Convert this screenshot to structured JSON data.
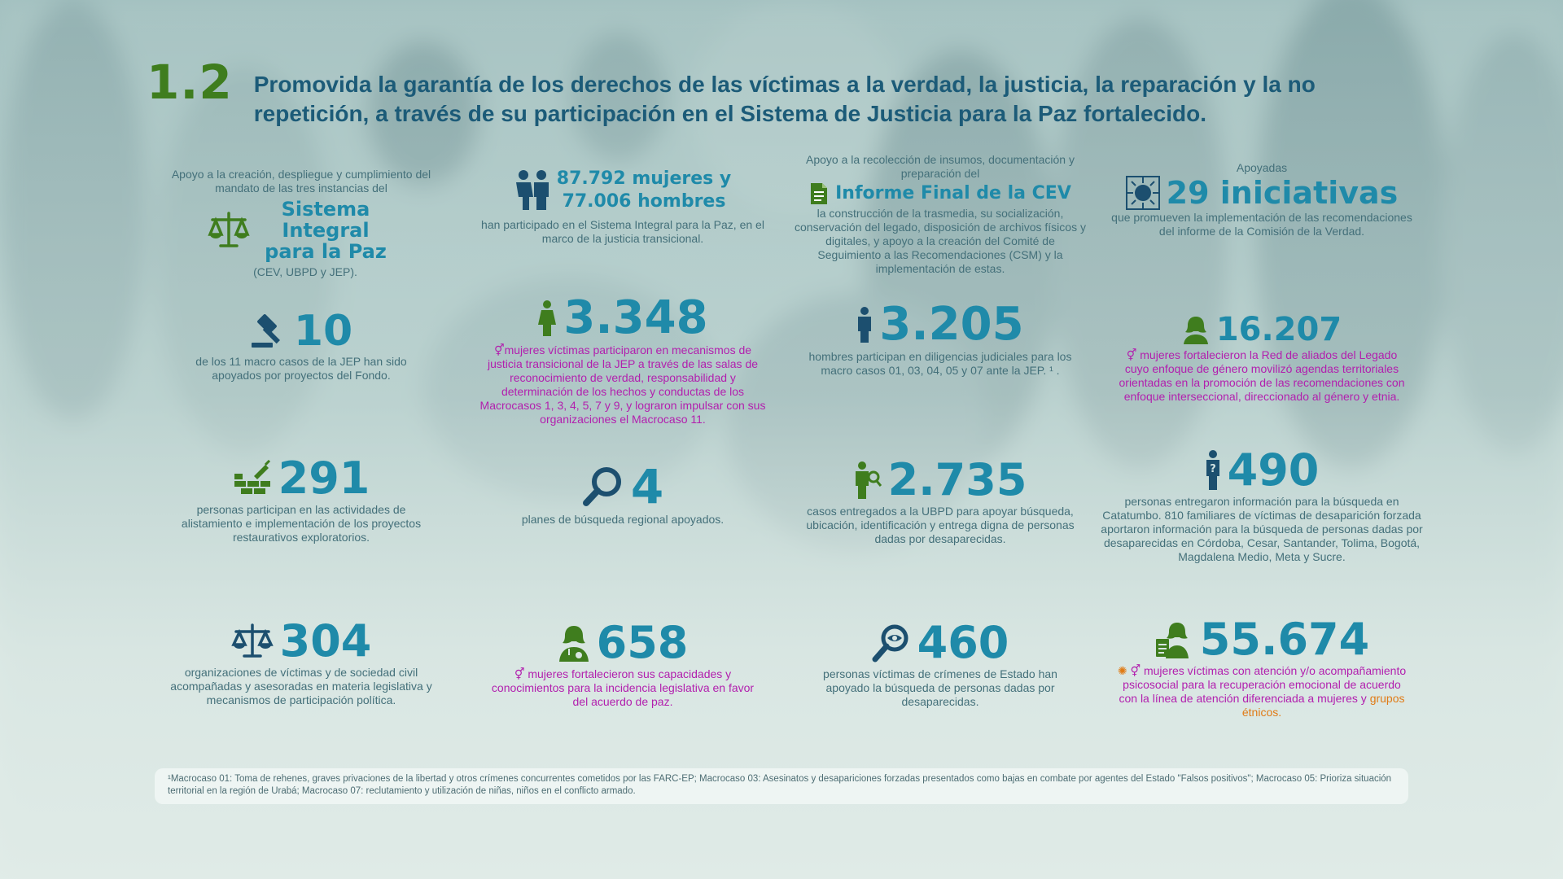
{
  "header": {
    "number": "1.2",
    "title": "Promovida la garantía de los derechos de las víctimas a la verdad, la justicia, la reparación y la no repetición, a través de su participación en el Sistema de Justicia para la Paz fortalecido."
  },
  "colors": {
    "green": "#3f7d1e",
    "navy": "#1c4f6f",
    "teal": "#1f8aa9",
    "magenta": "#b21fae",
    "orange": "#e07b16"
  },
  "row1": {
    "c1": {
      "pre": "Apoyo a la creación, despliegue y cumplimiento del mandato de las tres instancias del",
      "highlight": "Sistema Integral para la Paz",
      "post": "(CEV, UBPD y JEP).",
      "icon": "scales-icon"
    },
    "c2": {
      "highlight_line1": "87.792 mujeres y",
      "highlight_line2": "77.006 hombres",
      "post": "han participado en el Sistema Integral para la Paz, en el marco de la justicia transicional.",
      "icon": "people-icon"
    },
    "c3": {
      "pre": "Apoyo a la recolección de insumos, documentación y preparación del",
      "highlight": "Informe Final de la CEV",
      "post": "la construcción de la trasmedia, su socialización, conservación del legado, disposición de archivos físicos y digitales, y apoyo a la creación del Comité de Seguimiento a las Recomendaciones (CSM) y la implementación de estas.",
      "icon": "document-icon"
    },
    "c4": {
      "pre": "Apoyadas",
      "highlight": "29 iniciativas",
      "post": "que promueven la implementación de las recomendaciones del informe de la Comisión de la Verdad.",
      "icon": "emblem-icon"
    }
  },
  "row2": {
    "c1": {
      "value": "10",
      "text": "de los 11 macro casos de la JEP han sido apoyados por proyectos del Fondo.",
      "icon": "gavel-icon"
    },
    "c2": {
      "value": "3.348",
      "text": "mujeres víctimas participaron en mecanismos de justicia transicional de la JEP a través de las salas de reconocimiento de verdad, responsabilidad y determinación de los hechos y conductas de los Macrocasos 1, 3, 4, 5, 7 y 9, y lograron impulsar con sus organizaciones el Macrocaso 11.",
      "icon": "woman-icon"
    },
    "c3": {
      "value": "3.205",
      "text": "hombres participan en diligencias judiciales para los macro casos 01, 03, 04, 05 y 07 ante la JEP. ¹ .",
      "icon": "man-icon"
    },
    "c4": {
      "value": "16.207",
      "text": "mujeres fortalecieron la Red de aliados del Legado cuyo enfoque de género movilizó agendas territoriales orientadas en la promoción de las recomendaciones con enfoque interseccional, direccionado al género y etnia.",
      "icon": "woman-bust-icon"
    }
  },
  "row3": {
    "c1": {
      "value": "291",
      "text": "personas participan en las actividades de alistamiento e implementación de los proyectos restaurativos exploratorios.",
      "icon": "bricks-trowel-icon"
    },
    "c2": {
      "value": "4",
      "text": "planes de búsqueda regional apoyados.",
      "icon": "magnifier-icon"
    },
    "c3": {
      "value": "2.735",
      "text": "casos entregados a la UBPD para apoyar búsqueda, ubicación, identificación y entrega digna de personas dadas por desaparecidas.",
      "icon": "person-search-icon"
    },
    "c4": {
      "value": "490",
      "text": "personas entregaron información para la búsqueda en Catatumbo. 810 familiares de víctimas de desaparición forzada aportaron información para la búsqueda de personas dadas por desaparecidas en Córdoba, Cesar, Santander, Tolima, Bogotá, Magdalena Medio, Meta y Sucre.",
      "icon": "person-question-icon"
    }
  },
  "row4": {
    "c1": {
      "value": "304",
      "text": "organizaciones de víctimas y de sociedad civil acompañadas y asesoradas en materia legislativa y mecanismos de participación política.",
      "icon": "scales-icon"
    },
    "c2": {
      "value": "658",
      "text": "mujeres fortalecieron sus capacidades y conocimientos para la incidencia legislativa en favor del acuerdo de paz.",
      "icon": "woman-doctor-icon"
    },
    "c3": {
      "value": "460",
      "text": "personas víctimas de crímenes de Estado han apoyado la búsqueda de personas dadas por desaparecidas.",
      "icon": "eye-magnifier-icon"
    },
    "c4": {
      "value": "55.674",
      "text": "mujeres víctimas con atención y/o acompañamiento psicosocial para la recuperación emocional de acuerdo con la línea de atención diferenciada a mujeres y",
      "text_orange": "grupos étnicos.",
      "icon": "psychologist-icon"
    }
  },
  "footnote": "¹Macrocaso 01: Toma de rehenes, graves privaciones de la libertad y otros crímenes concurrentes cometidos por las FARC-EP; Macrocaso 03: Asesinatos y desapariciones forzadas presentados como bajas en combate por agentes del Estado \"Falsos positivos\"; Macrocaso 05: Prioriza situación territorial en la región de Urabá; Macrocaso 07: reclutamiento y utilización de niñas, niños en el conflicto armado."
}
